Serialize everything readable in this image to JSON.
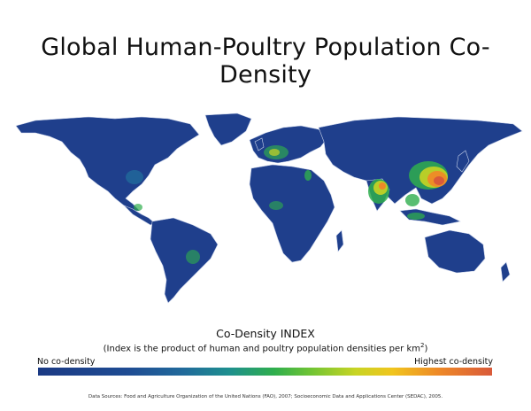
{
  "title": "Global Human-Poultry Population Co-Density",
  "legend": {
    "title": "Co-Density INDEX",
    "subtitle_text": "(Index is the product of human and poultry population densities per km",
    "subtitle_sup": "2",
    "subtitle_end": ")",
    "low_label": "No co-density",
    "high_label": "Highest co-density",
    "colors": [
      "#1b3a84",
      "#216a9b",
      "#2fae4d",
      "#c8d424",
      "#f0c51e",
      "#ee8a27",
      "#d95a3a"
    ]
  },
  "source": "Data Sources: Food and Agriculture Organization of the United Nations (FAO), 2007; Socioeconomic Data and Applications Center (SEDAC), 2005.",
  "map": {
    "land_color": "#1f3f8c",
    "border_color": "#c9d3ea"
  }
}
